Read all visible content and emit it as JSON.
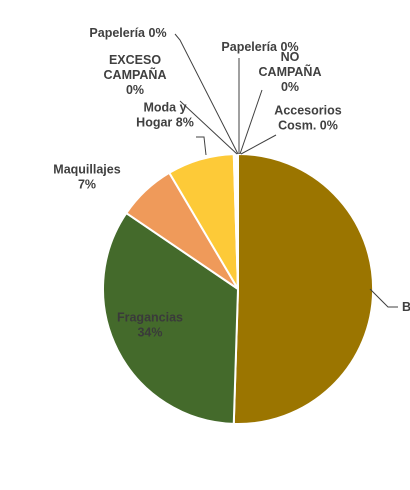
{
  "chart_data": {
    "type": "pie",
    "title": "",
    "legend": "none",
    "slices": [
      {
        "lines": [
          "B"
        ],
        "value": 50.5,
        "color": "#9b7500"
      },
      {
        "lines": [
          "Fragancias",
          "34%"
        ],
        "value": 34,
        "color": "#446a2b"
      },
      {
        "lines": [
          "Maquillajes",
          "7%"
        ],
        "value": 7,
        "color": "#ef9a5a"
      },
      {
        "lines": [
          "Moda y",
          "Hogar 8%"
        ],
        "value": 8,
        "color": "#fdca38"
      },
      {
        "lines": [
          "EXCESO",
          "CAMPAÑA",
          "0%"
        ],
        "value": 0.1,
        "color": "#7f7f7f"
      },
      {
        "lines": [
          "Papelería 0%"
        ],
        "value": 0.1,
        "color": "#a5a5a5"
      },
      {
        "lines": [
          "Papelería 0%"
        ],
        "value": 0.1,
        "color": "#5b9bd5"
      },
      {
        "lines": [
          "NO",
          "CAMPAÑA",
          "0%"
        ],
        "value": 0.1,
        "color": "#264478"
      },
      {
        "lines": [
          "Accesorios",
          "Cosm. 0%"
        ],
        "value": 0.1,
        "color": "#70ad47"
      }
    ]
  }
}
